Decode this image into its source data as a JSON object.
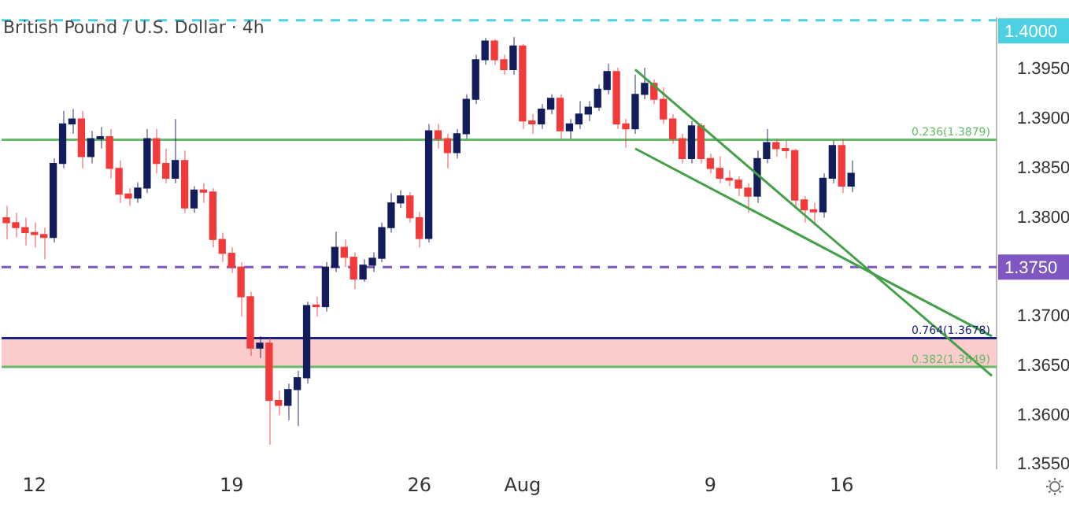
{
  "chart_data": {
    "type": "candlestick",
    "title": "British Pound / U.S. Dollar · 4h",
    "categories": [
      null,
      null,
      null,
      "12",
      null,
      null,
      null,
      null,
      null,
      null,
      null,
      null,
      null,
      null,
      null,
      null,
      null,
      null,
      null,
      null,
      null,
      null,
      null,
      null,
      "19",
      null,
      null,
      null,
      null,
      null,
      null,
      null,
      null,
      null,
      null,
      null,
      null,
      null,
      null,
      null,
      null,
      null,
      null,
      null,
      "26",
      null,
      null,
      null,
      null,
      null,
      null,
      null,
      null,
      null,
      null,
      "Aug",
      null,
      null,
      null,
      null,
      null,
      null,
      null,
      null,
      null,
      null,
      null,
      null,
      null,
      null,
      null,
      null,
      null,
      null,
      null,
      "9",
      null,
      null,
      null,
      null,
      null,
      null,
      null,
      null,
      null,
      null,
      null,
      null,
      null,
      "16",
      null,
      null,
      null,
      null,
      null,
      null,
      null,
      null,
      null,
      null,
      null,
      null,
      null,
      null,
      null,
      null
    ],
    "ohlc": [
      [
        1.38,
        1.3812,
        1.3778,
        1.3795
      ],
      [
        1.3795,
        1.3805,
        1.378,
        1.379
      ],
      [
        1.379,
        1.38,
        1.3772,
        1.3785
      ],
      [
        1.3785,
        1.3795,
        1.377,
        1.3783
      ],
      [
        1.3783,
        1.379,
        1.3758,
        1.378
      ],
      [
        1.378,
        1.386,
        1.3775,
        1.3855
      ],
      [
        1.3855,
        1.3908,
        1.385,
        1.3895
      ],
      [
        1.3895,
        1.391,
        1.3885,
        1.39
      ],
      [
        1.39,
        1.3908,
        1.385,
        1.3862
      ],
      [
        1.3862,
        1.3888,
        1.3855,
        1.388
      ],
      [
        1.388,
        1.3892,
        1.387,
        1.3882
      ],
      [
        1.3882,
        1.389,
        1.384,
        1.385
      ],
      [
        1.385,
        1.3858,
        1.3815,
        1.3824
      ],
      [
        1.3824,
        1.383,
        1.3812,
        1.382
      ],
      [
        1.382,
        1.3836,
        1.3815,
        1.383
      ],
      [
        1.383,
        1.389,
        1.3825,
        1.388
      ],
      [
        1.388,
        1.389,
        1.3845,
        1.3855
      ],
      [
        1.3855,
        1.387,
        1.3835,
        1.384
      ],
      [
        1.384,
        1.39,
        1.3835,
        1.3858
      ],
      [
        1.3858,
        1.3868,
        1.3805,
        1.381
      ],
      [
        1.381,
        1.3832,
        1.3805,
        1.3828
      ],
      [
        1.3828,
        1.3835,
        1.3815,
        1.3826
      ],
      [
        1.3826,
        1.383,
        1.377,
        1.3778
      ],
      [
        1.3778,
        1.3785,
        1.3755,
        1.3764
      ],
      [
        1.3764,
        1.377,
        1.3744,
        1.375
      ],
      [
        1.375,
        1.3755,
        1.37,
        1.372
      ],
      [
        1.372,
        1.3725,
        1.366,
        1.3668
      ],
      [
        1.3668,
        1.368,
        1.3658,
        1.3673
      ],
      [
        1.3673,
        1.3678,
        1.357,
        1.3615
      ],
      [
        1.3615,
        1.3625,
        1.36,
        1.361
      ],
      [
        1.361,
        1.3632,
        1.3595,
        1.3626
      ],
      [
        1.3626,
        1.3645,
        1.3589,
        1.3638
      ],
      [
        1.3638,
        1.3715,
        1.3632,
        1.3711
      ],
      [
        1.3711,
        1.372,
        1.37,
        1.371
      ],
      [
        1.371,
        1.3755,
        1.3705,
        1.375
      ],
      [
        1.375,
        1.3786,
        1.3745,
        1.377
      ],
      [
        1.377,
        1.3778,
        1.375,
        1.376
      ],
      [
        1.376,
        1.3765,
        1.3728,
        1.3738
      ],
      [
        1.3738,
        1.3758,
        1.3735,
        1.3752
      ],
      [
        1.3752,
        1.3765,
        1.3745,
        1.3759
      ],
      [
        1.3759,
        1.3795,
        1.3755,
        1.379
      ],
      [
        1.379,
        1.3825,
        1.3785,
        1.3815
      ],
      [
        1.3815,
        1.3828,
        1.381,
        1.3822
      ],
      [
        1.3822,
        1.3826,
        1.3795,
        1.38
      ],
      [
        1.38,
        1.3806,
        1.377,
        1.3779
      ],
      [
        1.3779,
        1.3895,
        1.3775,
        1.3888
      ],
      [
        1.3888,
        1.3895,
        1.387,
        1.388
      ],
      [
        1.388,
        1.3885,
        1.385,
        1.3866
      ],
      [
        1.3866,
        1.389,
        1.386,
        1.3885
      ],
      [
        1.3885,
        1.3925,
        1.388,
        1.392
      ],
      [
        1.392,
        1.3965,
        1.3915,
        1.396
      ],
      [
        1.396,
        1.3982,
        1.3955,
        1.3979
      ],
      [
        1.3979,
        1.3981,
        1.3955,
        1.396
      ],
      [
        1.396,
        1.3965,
        1.3945,
        1.395
      ],
      [
        1.395,
        1.3983,
        1.3945,
        1.3974
      ],
      [
        1.3974,
        1.3976,
        1.389,
        1.3898
      ],
      [
        1.3898,
        1.3905,
        1.3885,
        1.3895
      ],
      [
        1.3895,
        1.3915,
        1.389,
        1.391
      ],
      [
        1.391,
        1.3925,
        1.3905,
        1.3921
      ],
      [
        1.3921,
        1.3925,
        1.388,
        1.3888
      ],
      [
        1.3888,
        1.39,
        1.388,
        1.3895
      ],
      [
        1.3895,
        1.3918,
        1.389,
        1.3905
      ],
      [
        1.3905,
        1.3918,
        1.3898,
        1.3912
      ],
      [
        1.3912,
        1.3935,
        1.3908,
        1.393
      ],
      [
        1.393,
        1.3956,
        1.3925,
        1.3948
      ],
      [
        1.3948,
        1.3952,
        1.389,
        1.3895
      ],
      [
        1.3895,
        1.39,
        1.3871,
        1.389
      ],
      [
        1.389,
        1.3945,
        1.3885,
        1.3925
      ],
      [
        1.3925,
        1.3952,
        1.392,
        1.3936
      ],
      [
        1.3936,
        1.394,
        1.3915,
        1.392
      ],
      [
        1.392,
        1.3932,
        1.3895,
        1.39
      ],
      [
        1.39,
        1.3905,
        1.3875,
        1.388
      ],
      [
        1.388,
        1.3885,
        1.3855,
        1.386
      ],
      [
        1.386,
        1.3898,
        1.3855,
        1.3893
      ],
      [
        1.3893,
        1.3896,
        1.3855,
        1.386
      ],
      [
        1.386,
        1.3865,
        1.3845,
        1.385
      ],
      [
        1.385,
        1.3862,
        1.3835,
        1.384
      ],
      [
        1.384,
        1.3848,
        1.3832,
        1.3838
      ],
      [
        1.3838,
        1.3842,
        1.3822,
        1.383
      ],
      [
        1.383,
        1.3835,
        1.3805,
        1.3822
      ],
      [
        1.3822,
        1.3868,
        1.3815,
        1.386
      ],
      [
        1.386,
        1.389,
        1.3855,
        1.3876
      ],
      [
        1.3876,
        1.388,
        1.3862,
        1.387
      ],
      [
        1.387,
        1.3878,
        1.386,
        1.3868
      ],
      [
        1.3868,
        1.387,
        1.381,
        1.3818
      ],
      [
        1.3818,
        1.3822,
        1.3795,
        1.3808
      ],
      [
        1.3808,
        1.3815,
        1.3792,
        1.3806
      ],
      [
        1.3806,
        1.3845,
        1.38,
        1.384
      ],
      [
        1.384,
        1.3878,
        1.3835,
        1.3873
      ],
      [
        1.3873,
        1.388,
        1.3825,
        1.3832
      ],
      [
        1.3832,
        1.3858,
        1.3826,
        1.3845
      ],
      null,
      null,
      null,
      null,
      null,
      null,
      null,
      null,
      null,
      null,
      null,
      null,
      null,
      null,
      null
    ],
    "colors": [
      "#f23a3a",
      "#f23a3a",
      "#f23a3a",
      "#f23a3a",
      "#f23a3a",
      "#131d5c",
      "#131d5c",
      "#131d5c",
      "#f23a3a",
      "#131d5c",
      "#131d5c",
      "#f23a3a",
      "#f23a3a",
      "#f23a3a",
      "#131d5c",
      "#131d5c",
      "#f23a3a",
      "#f23a3a",
      "#131d5c",
      "#f23a3a",
      "#131d5c",
      "#f23a3a",
      "#f23a3a",
      "#f23a3a",
      "#f23a3a",
      "#f23a3a",
      "#f23a3a",
      "#131d5c",
      "#f23a3a",
      "#f23a3a",
      "#131d5c",
      "#131d5c",
      "#131d5c",
      "#f23a3a",
      "#131d5c",
      "#131d5c",
      "#f23a3a",
      "#f23a3a",
      "#131d5c",
      "#131d5c",
      "#131d5c",
      "#131d5c",
      "#131d5c",
      "#f23a3a",
      "#f23a3a",
      "#131d5c",
      "#f23a3a",
      "#f23a3a",
      "#131d5c",
      "#131d5c",
      "#131d5c",
      "#131d5c",
      "#f23a3a",
      "#f23a3a",
      "#131d5c",
      "#f23a3a",
      "#f23a3a",
      "#131d5c",
      "#131d5c",
      "#f23a3a",
      "#131d5c",
      "#131d5c",
      "#131d5c",
      "#131d5c",
      "#131d5c",
      "#f23a3a",
      "#f23a3a",
      "#131d5c",
      "#131d5c",
      "#f23a3a",
      "#f23a3a",
      "#f23a3a",
      "#f23a3a",
      "#131d5c",
      "#f23a3a",
      "#f23a3a",
      "#f23a3a",
      "#f23a3a",
      "#f23a3a",
      "#f23a3a",
      "#131d5c",
      "#131d5c",
      "#f23a3a",
      "#f23a3a",
      "#f23a3a",
      "#f23a3a",
      "#f23a3a",
      "#131d5c",
      "#131d5c",
      "#f23a3a",
      "#131d5c",
      null,
      null,
      null,
      null,
      null,
      null,
      null,
      null,
      null,
      null,
      null,
      null,
      null,
      null,
      null
    ],
    "series": [
      {
        "type": "line",
        "color": "#43a047",
        "values": [
          null,
          null,
          null,
          null,
          null,
          null,
          null,
          null,
          null,
          null,
          null,
          null,
          null,
          null,
          null,
          null,
          null,
          null,
          null,
          null,
          null,
          null,
          null,
          null,
          null,
          null,
          null,
          null,
          null,
          null,
          null,
          null,
          null,
          null,
          null,
          null,
          null,
          null,
          null,
          null,
          null,
          null,
          null,
          null,
          null,
          null,
          null,
          null,
          null,
          null,
          null,
          null,
          null,
          null,
          null,
          null,
          null,
          null,
          null,
          null,
          null,
          null,
          null,
          null,
          null,
          null,
          null,
          1.395,
          null,
          null,
          null,
          null,
          null,
          null,
          null,
          null,
          null,
          null,
          null,
          null,
          null,
          null,
          null,
          null,
          null,
          null,
          null,
          null,
          null,
          null,
          null,
          null,
          null,
          null,
          null,
          null,
          null,
          null,
          null,
          null,
          null,
          null,
          null,
          null,
          null,
          1.364
        ]
      },
      {
        "type": "line",
        "color": "#43a047",
        "values": [
          null,
          null,
          null,
          null,
          null,
          null,
          null,
          null,
          null,
          null,
          null,
          null,
          null,
          null,
          null,
          null,
          null,
          null,
          null,
          null,
          null,
          null,
          null,
          null,
          null,
          null,
          null,
          null,
          null,
          null,
          null,
          null,
          null,
          null,
          null,
          null,
          null,
          null,
          null,
          null,
          null,
          null,
          null,
          null,
          null,
          null,
          null,
          null,
          null,
          null,
          null,
          null,
          null,
          null,
          null,
          null,
          null,
          null,
          null,
          null,
          null,
          null,
          null,
          null,
          null,
          null,
          null,
          1.387,
          null,
          null,
          null,
          null,
          null,
          null,
          null,
          null,
          null,
          null,
          null,
          null,
          null,
          null,
          null,
          null,
          null,
          null,
          null,
          null,
          null,
          null,
          null,
          null,
          null,
          null,
          null,
          null,
          null,
          null,
          null,
          null,
          null,
          null,
          null,
          null,
          null,
          1.368
        ]
      }
    ],
    "ylim": [
      1.3546,
      1.4002
    ],
    "yticks": [
      {
        "value": 1.355,
        "label": "1.3550"
      },
      {
        "value": 1.36,
        "label": "1.3600"
      },
      {
        "value": 1.365,
        "label": "1.3650"
      },
      {
        "value": 1.37,
        "label": "1.3700"
      },
      {
        "value": 1.38,
        "label": "1.3800"
      },
      {
        "value": 1.385,
        "label": "1.3850"
      },
      {
        "value": 1.39,
        "label": "1.3900"
      },
      {
        "value": 1.395,
        "label": "1.3950"
      }
    ],
    "ref_lines": [
      {
        "axis": "y",
        "value": 1.4,
        "label": "1.4000",
        "color": "#4dd0e1",
        "line_style": "dashed"
      },
      {
        "axis": "y",
        "value": 1.375,
        "label": "1.3750",
        "color": "#7e57c2",
        "line_style": "dashed"
      },
      {
        "axis": "y",
        "value": 1.3879,
        "label": "0.236(1.3879)",
        "color": "#66bb6a",
        "line_style": "solid"
      },
      {
        "axis": "y",
        "value": 1.3678,
        "label": "0.764(1.3678)",
        "color": "#1a237e",
        "line_style": "solid"
      },
      {
        "axis": "y",
        "value": 1.3649,
        "label": "0.382(1.3649)",
        "color": "#66bb6a",
        "line_style": "solid"
      }
    ],
    "bands": [
      {
        "axis": "y",
        "from": 1.3649,
        "to": 1.3678,
        "color": "#fccbcb"
      }
    ],
    "grid": false,
    "legend": false
  }
}
